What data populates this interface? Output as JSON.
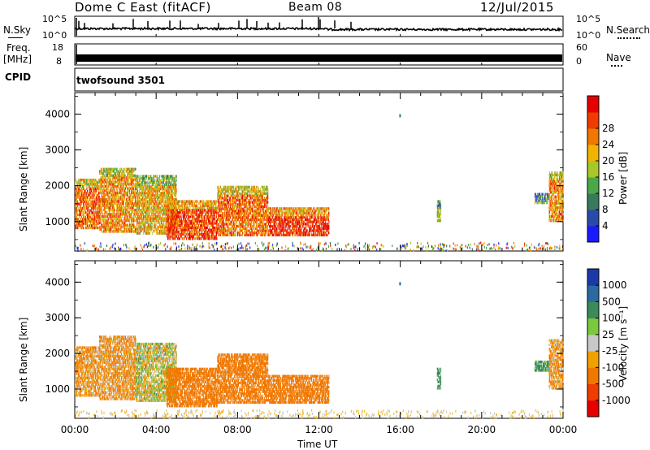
{
  "header": {
    "title": "Dome C East (fitACF)",
    "beam": "Beam 08",
    "date": "12/Jul/2015"
  },
  "noise_panel": {
    "left_label": "N.Sky",
    "left_ticks": [
      "10^5",
      "10^0"
    ],
    "right_ticks": [
      "10^5",
      "10^0"
    ],
    "right_label": "N.Search"
  },
  "freq_panel": {
    "left_label_1": "Freq.",
    "left_label_2": "[MHz]",
    "left_ticks": [
      "18",
      "8"
    ],
    "right_ticks": [
      "60",
      "0"
    ],
    "right_label": "Nave"
  },
  "cpid_panel": {
    "left_label": "CPID",
    "program": "twofsound 3501"
  },
  "colors": {
    "power_scale": [
      "#1a1aff",
      "#2a4aa8",
      "#3a7a5a",
      "#4aa84a",
      "#a8c828",
      "#f0b400",
      "#f07800",
      "#f03c00",
      "#e60000"
    ],
    "velocity_scale": [
      "#e60000",
      "#f03c00",
      "#f07800",
      "#f0a000",
      "#c8c8c8",
      "#7ac83c",
      "#3a8a5a",
      "#2a6aa0",
      "#1a3aa8"
    ]
  },
  "chart_data": [
    {
      "type": "heatmap",
      "name": "power",
      "ylabel": "Slant Range [km]",
      "yticks": [
        "1000",
        "2000",
        "3000",
        "4000"
      ],
      "ylim": [
        180,
        4600
      ],
      "x_range_hours": [
        0,
        24
      ],
      "colorbar_label": "Power [dB]",
      "colorbar_ticks": [
        "4",
        "8",
        "12",
        "16",
        "20",
        "24",
        "28"
      ],
      "colorbar_range": [
        0,
        32
      ],
      "bands": [
        {
          "t0": 0.0,
          "t1": 1.2,
          "r0": 800,
          "r1": 2200,
          "v": 24
        },
        {
          "t0": 1.2,
          "t1": 3.0,
          "r0": 700,
          "r1": 2500,
          "v": 22
        },
        {
          "t0": 3.0,
          "t1": 5.0,
          "r0": 650,
          "r1": 2300,
          "v": 20
        },
        {
          "t0": 4.5,
          "t1": 7.0,
          "r0": 500,
          "r1": 1600,
          "v": 27
        },
        {
          "t0": 7.0,
          "t1": 9.5,
          "r0": 600,
          "r1": 2000,
          "v": 24
        },
        {
          "t0": 9.5,
          "t1": 12.5,
          "r0": 600,
          "r1": 1400,
          "v": 28
        },
        {
          "t0": 17.8,
          "t1": 18.0,
          "r0": 1000,
          "r1": 1600,
          "v": 16
        },
        {
          "t0": 22.6,
          "t1": 23.3,
          "r0": 1500,
          "r1": 1800,
          "v": 16
        },
        {
          "t0": 23.3,
          "t1": 24.0,
          "r0": 1000,
          "r1": 2400,
          "v": 22
        }
      ]
    },
    {
      "type": "heatmap",
      "name": "velocity",
      "ylabel": "Slant Range [km]",
      "yticks": [
        "1000",
        "2000",
        "3000",
        "4000"
      ],
      "ylim": [
        180,
        4600
      ],
      "x_range_hours": [
        0,
        24
      ],
      "xticks": [
        "00:00",
        "04:00",
        "08:00",
        "12:00",
        "16:00",
        "20:00",
        "00:00"
      ],
      "xlabel": "Time UT",
      "colorbar_label": "Velocity [m s⁻¹]",
      "colorbar_ticks": [
        "-1000",
        "-500",
        "-100",
        "-25",
        "25",
        "100",
        "500",
        "1000"
      ],
      "bands": [
        {
          "t0": 0.0,
          "t1": 1.2,
          "r0": 800,
          "r1": 2200,
          "v": -100
        },
        {
          "t0": 1.2,
          "t1": 3.0,
          "r0": 700,
          "r1": 2500,
          "v": -100
        },
        {
          "t0": 3.0,
          "t1": 5.0,
          "r0": 650,
          "r1": 2300,
          "v": 0
        },
        {
          "t0": 4.5,
          "t1": 7.0,
          "r0": 500,
          "r1": 1600,
          "v": -300
        },
        {
          "t0": 7.0,
          "t1": 9.5,
          "r0": 600,
          "r1": 2000,
          "v": -300
        },
        {
          "t0": 9.5,
          "t1": 12.5,
          "r0": 600,
          "r1": 1400,
          "v": -300
        },
        {
          "t0": 17.8,
          "t1": 18.0,
          "r0": 1000,
          "r1": 1600,
          "v": 200
        },
        {
          "t0": 22.6,
          "t1": 23.3,
          "r0": 1500,
          "r1": 1800,
          "v": 200
        },
        {
          "t0": 23.3,
          "t1": 24.0,
          "r0": 1000,
          "r1": 2400,
          "v": -100
        }
      ]
    }
  ]
}
